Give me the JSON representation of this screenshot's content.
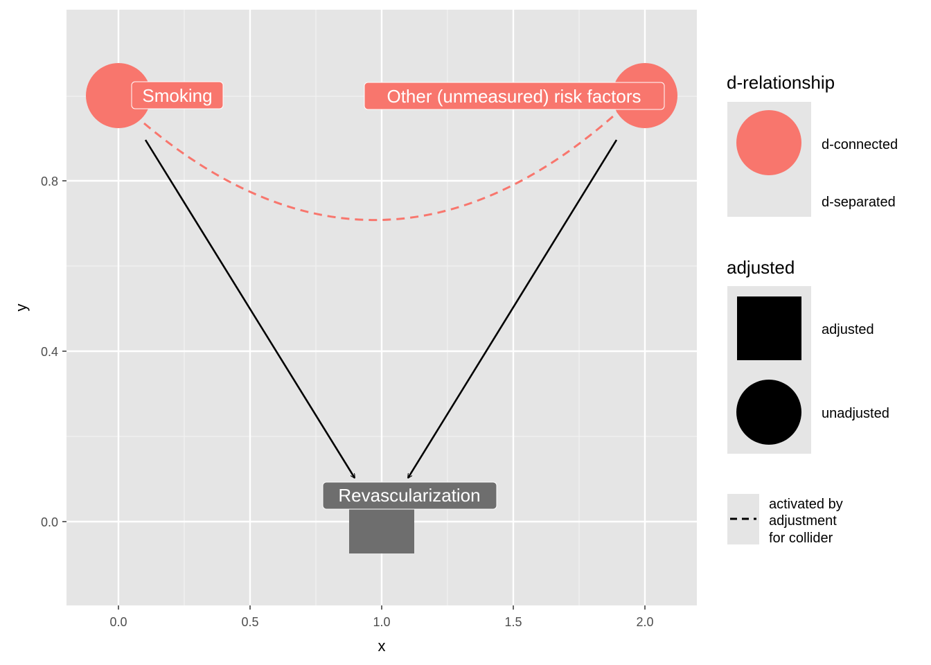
{
  "axes": {
    "x_title": "x",
    "y_title": "y",
    "x_ticks": [
      "0.0",
      "0.5",
      "1.0",
      "1.5",
      "2.0"
    ],
    "y_ticks": [
      "0.0",
      "0.4",
      "0.8"
    ]
  },
  "nodes": [
    {
      "label": "Smoking",
      "x": 0.0,
      "y": 1.0,
      "d_relationship": "d-connected",
      "adjusted": "unadjusted",
      "color": "#F8766D"
    },
    {
      "label": "Other (unmeasured) risk factors",
      "x": 2.0,
      "y": 1.0,
      "d_relationship": "d-connected",
      "adjusted": "unadjusted",
      "color": "#F8766D"
    },
    {
      "label": "Revascularization",
      "x": 1.0,
      "y": 0.0,
      "d_relationship": "",
      "adjusted": "adjusted",
      "color": "#6E6E6E"
    }
  ],
  "edges": [
    {
      "from": "Smoking",
      "to": "Revascularization",
      "style": "solid arrow"
    },
    {
      "from": "Other (unmeasured) risk factors",
      "to": "Revascularization",
      "style": "solid arrow"
    },
    {
      "from": "Smoking",
      "to": "Other (unmeasured) risk factors",
      "style": "dashed curve",
      "color": "#F8766D"
    }
  ],
  "legend": {
    "d_relationship": {
      "title": "d-relationship",
      "items": [
        "d-connected",
        "d-separated"
      ]
    },
    "adjusted": {
      "title": "adjusted",
      "items": [
        "adjusted",
        "unadjusted"
      ]
    },
    "collider": {
      "lines": [
        "activated by",
        "adjustment",
        "for collider"
      ]
    }
  },
  "colors": {
    "panel": "#E5E5E5",
    "d_connected": "#F8766D",
    "adjusted_node": "#6E6E6E"
  }
}
